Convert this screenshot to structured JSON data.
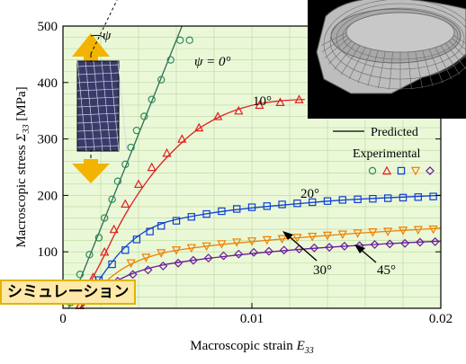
{
  "badge": {
    "label": "シミュレーション"
  },
  "chart_data": {
    "type": "scatter",
    "xlabel": "Macroscopic strain",
    "xlabel_symbol": "E",
    "xlabel_sub": "33",
    "ylabel": "Macroscopic stress",
    "ylabel_symbol": "Σ",
    "ylabel_sub": "33",
    "ylabel_unit": "[MPa]",
    "xlim": [
      0,
      0.02
    ],
    "ylim": [
      0,
      500
    ],
    "x_ticks": [
      0,
      0.01,
      0.02
    ],
    "x_tick_labels": [
      "0",
      "0.01",
      "0.02"
    ],
    "y_ticks": [
      100,
      200,
      300,
      400,
      500
    ],
    "y_tick_labels": [
      "100",
      "200",
      "300",
      "400",
      "500"
    ],
    "grid": true,
    "background": "#eaf8d8",
    "grid_color": "#b9d99a",
    "legend": {
      "placement": "right",
      "predicted_label": "Predicted",
      "experimental_label": "Experimental"
    },
    "series": [
      {
        "name": "ψ = 0°",
        "label": "ψ = 0°",
        "color": "#2e8b57",
        "marker": "circle",
        "predicted": [
          [
            0.0003,
            0
          ],
          [
            0.0063,
            500
          ]
        ],
        "points": [
          [
            0.0004,
            10
          ],
          [
            0.0009,
            60
          ],
          [
            0.0014,
            95
          ],
          [
            0.0019,
            125
          ],
          [
            0.0022,
            160
          ],
          [
            0.0026,
            193
          ],
          [
            0.0029,
            225
          ],
          [
            0.0033,
            255
          ],
          [
            0.0036,
            285
          ],
          [
            0.0039,
            315
          ],
          [
            0.0043,
            340
          ],
          [
            0.0047,
            370
          ],
          [
            0.0052,
            405
          ],
          [
            0.0057,
            440
          ],
          [
            0.0062,
            475
          ],
          [
            0.0067,
            475
          ]
        ]
      },
      {
        "name": "10°",
        "label": "10°",
        "color": "#e02020",
        "marker": "triangle-up",
        "predicted": [
          [
            0.0007,
            0
          ],
          [
            0.002,
            80
          ],
          [
            0.003,
            150
          ],
          [
            0.004,
            205
          ],
          [
            0.005,
            250
          ],
          [
            0.006,
            285
          ],
          [
            0.007,
            315
          ],
          [
            0.008,
            335
          ],
          [
            0.009,
            350
          ],
          [
            0.01,
            360
          ],
          [
            0.011,
            366
          ],
          [
            0.012,
            369
          ],
          [
            0.0128,
            370
          ]
        ],
        "points": [
          [
            0.0009,
            5
          ],
          [
            0.0016,
            55
          ],
          [
            0.0022,
            100
          ],
          [
            0.0027,
            140
          ],
          [
            0.0033,
            185
          ],
          [
            0.004,
            220
          ],
          [
            0.0047,
            250
          ],
          [
            0.0055,
            275
          ],
          [
            0.0063,
            300
          ],
          [
            0.0072,
            320
          ],
          [
            0.0082,
            340
          ],
          [
            0.0093,
            350
          ],
          [
            0.0104,
            360
          ],
          [
            0.0115,
            365
          ],
          [
            0.0125,
            370
          ]
        ]
      },
      {
        "name": "20°",
        "label": "20°",
        "color": "#1040d0",
        "marker": "square",
        "predicted": [
          [
            0.0009,
            0
          ],
          [
            0.002,
            55
          ],
          [
            0.003,
            100
          ],
          [
            0.004,
            130
          ],
          [
            0.005,
            148
          ],
          [
            0.006,
            158
          ],
          [
            0.008,
            170
          ],
          [
            0.01,
            178
          ],
          [
            0.012,
            184
          ],
          [
            0.014,
            190
          ],
          [
            0.016,
            194
          ],
          [
            0.018,
            197
          ],
          [
            0.02,
            200
          ]
        ],
        "points": [
          [
            0.0019,
            50
          ],
          [
            0.0026,
            78
          ],
          [
            0.0033,
            103
          ],
          [
            0.0039,
            122
          ],
          [
            0.0046,
            136
          ],
          [
            0.0052,
            146
          ],
          [
            0.006,
            155
          ],
          [
            0.0068,
            162
          ],
          [
            0.0076,
            167
          ],
          [
            0.0084,
            172
          ],
          [
            0.0092,
            176
          ],
          [
            0.01,
            179
          ],
          [
            0.0108,
            181
          ],
          [
            0.0116,
            184
          ],
          [
            0.0124,
            186
          ],
          [
            0.0132,
            188
          ],
          [
            0.014,
            190
          ],
          [
            0.0148,
            192
          ],
          [
            0.0156,
            193
          ],
          [
            0.0164,
            194
          ],
          [
            0.0172,
            195
          ],
          [
            0.018,
            196
          ],
          [
            0.0188,
            197
          ],
          [
            0.0196,
            198
          ]
        ]
      },
      {
        "name": "30°",
        "label": "30°",
        "color": "#f08000",
        "marker": "triangle-down",
        "predicted": [
          [
            0.0009,
            0
          ],
          [
            0.002,
            40
          ],
          [
            0.003,
            68
          ],
          [
            0.004,
            85
          ],
          [
            0.005,
            96
          ],
          [
            0.006,
            103
          ],
          [
            0.008,
            112
          ],
          [
            0.01,
            118
          ],
          [
            0.012,
            124
          ],
          [
            0.014,
            129
          ],
          [
            0.016,
            134
          ],
          [
            0.018,
            138
          ],
          [
            0.02,
            142
          ]
        ],
        "points": [
          [
            0.0036,
            80
          ],
          [
            0.0044,
            90
          ],
          [
            0.0052,
            98
          ],
          [
            0.006,
            103
          ],
          [
            0.0068,
            107
          ],
          [
            0.0076,
            110
          ],
          [
            0.0084,
            114
          ],
          [
            0.0092,
            117
          ],
          [
            0.01,
            119
          ],
          [
            0.0108,
            121
          ],
          [
            0.0116,
            123
          ],
          [
            0.0124,
            125
          ],
          [
            0.0132,
            127
          ],
          [
            0.014,
            129
          ],
          [
            0.0148,
            131
          ],
          [
            0.0156,
            133
          ],
          [
            0.0164,
            135
          ],
          [
            0.0172,
            136
          ],
          [
            0.018,
            138
          ],
          [
            0.0188,
            139
          ],
          [
            0.0196,
            140
          ]
        ]
      },
      {
        "name": "45°",
        "label": "45°",
        "color": "#6a1b9a",
        "marker": "diamond",
        "predicted": [
          [
            0.0009,
            0
          ],
          [
            0.002,
            30
          ],
          [
            0.003,
            52
          ],
          [
            0.004,
            66
          ],
          [
            0.005,
            75
          ],
          [
            0.006,
            81
          ],
          [
            0.008,
            90
          ],
          [
            0.01,
            97
          ],
          [
            0.012,
            103
          ],
          [
            0.014,
            108
          ],
          [
            0.016,
            112
          ],
          [
            0.018,
            116
          ],
          [
            0.02,
            119
          ]
        ],
        "points": [
          [
            0.0021,
            30
          ],
          [
            0.0029,
            48
          ],
          [
            0.0037,
            60
          ],
          [
            0.0045,
            68
          ],
          [
            0.0053,
            75
          ],
          [
            0.0061,
            80
          ],
          [
            0.0069,
            85
          ],
          [
            0.0077,
            89
          ],
          [
            0.0085,
            93
          ],
          [
            0.0093,
            96
          ],
          [
            0.0101,
            99
          ],
          [
            0.0109,
            101
          ],
          [
            0.0117,
            103
          ],
          [
            0.0125,
            105
          ],
          [
            0.0133,
            107
          ],
          [
            0.0141,
            108
          ],
          [
            0.0149,
            110
          ],
          [
            0.0157,
            111
          ],
          [
            0.0165,
            113
          ],
          [
            0.0173,
            114
          ],
          [
            0.0181,
            115
          ],
          [
            0.0189,
            117
          ],
          [
            0.0197,
            118
          ]
        ]
      }
    ]
  },
  "inset_specimen": {
    "angle_label": "ψ",
    "arrow_color": "#f2b400",
    "fill_color": "#3a3a6a"
  }
}
